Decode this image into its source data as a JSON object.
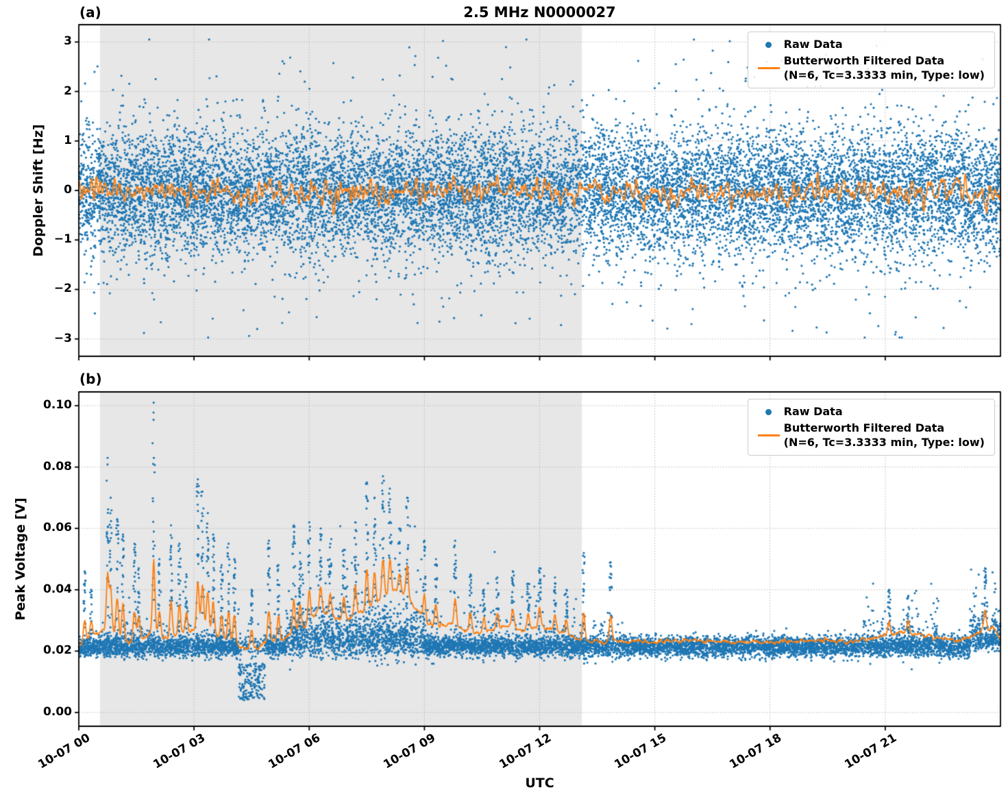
{
  "figure": {
    "title": "2.5 MHz N0000027",
    "panel_a_tag": "(a)",
    "panel_b_tag": "(b)",
    "xlabel": "UTC"
  },
  "legend": {
    "raw_label": "Raw Data",
    "filtered_label": "Butterworth Filtered Data",
    "filtered_sublabel": "(N=6, Tc=3.3333 min, Type: low)"
  },
  "colors": {
    "raw_scatter": "#1f77b4",
    "filtered_line": "#ff7f0e",
    "shaded_region": "#e7e7e7",
    "grid": "#b8b8b8",
    "axis": "#000000",
    "background": "#ffffff",
    "legend_border": "#cccccc"
  },
  "chart_data": [
    {
      "panel": "a",
      "type": "scatter",
      "title": "2.5 MHz N0000027",
      "ylabel": "Doppler Shift [Hz]",
      "ylim": [
        -3.35,
        3.35
      ],
      "yticks": [
        3,
        2,
        1,
        0,
        -1,
        -2,
        -3
      ],
      "ytick_labels": [
        "3",
        "2",
        "1",
        "0",
        "−1",
        "−2",
        "−3"
      ],
      "xlim_hours": [
        0,
        24
      ],
      "xtick_hours": [
        0,
        3,
        6,
        9,
        12,
        15,
        18,
        21
      ],
      "xtick_labels": [
        "10-07 00",
        "10-07 03",
        "10-07 06",
        "10-07 09",
        "10-07 12",
        "10-07 15",
        "10-07 18",
        "10-07 21"
      ],
      "shaded_region_hours": [
        0.55,
        13.1
      ],
      "grid": "dotted",
      "legend_position": "upper right",
      "series": [
        {
          "name": "Raw Data",
          "kind": "scatter",
          "color": "#1f77b4",
          "synthesis": {
            "count": 14000,
            "mean": -0.05,
            "core_std": 0.62,
            "wide_std": 1.0,
            "wide_fraction": 0.1,
            "outlier_fraction": 0.0045,
            "outlier_min": 2.0,
            "outlier_max": 3.05,
            "clip": [
              -2.97,
              3.05
            ]
          }
        },
        {
          "name": "Butterworth Filtered Data (N=6, Tc=3.3333 min, Type: low)",
          "kind": "line",
          "color": "#ff7f0e",
          "synthesis": {
            "count": 1400,
            "mean": -0.04,
            "std": 0.13,
            "max_abs": 0.45
          }
        }
      ]
    },
    {
      "panel": "b",
      "type": "scatter",
      "ylabel": "Peak Voltage [V]",
      "ylim": [
        -0.0045,
        0.1045
      ],
      "yticks": [
        0.1,
        0.08,
        0.06,
        0.04,
        0.02,
        0.0
      ],
      "ytick_labels": [
        "0.10",
        "0.08",
        "0.06",
        "0.04",
        "0.02",
        "0.00"
      ],
      "xlim_hours": [
        0,
        24
      ],
      "xtick_hours": [
        0,
        3,
        6,
        9,
        12,
        15,
        18,
        21
      ],
      "xtick_labels": [
        "10-07 00",
        "10-07 03",
        "10-07 06",
        "10-07 09",
        "10-07 12",
        "10-07 15",
        "10-07 18",
        "10-07 21"
      ],
      "shaded_region_hours": [
        0.55,
        13.1
      ],
      "grid": "dotted",
      "legend_position": "upper right",
      "series": [
        {
          "name": "Raw Data",
          "kind": "scatter",
          "color": "#1f77b4",
          "synthesis": {
            "count": 9500,
            "mean": 0.0215,
            "std": 0.0017,
            "clip": [
              0.003,
              0.102
            ]
          }
        },
        {
          "name": "Butterworth Filtered Data (N=6, Tc=3.3333 min, Type: low)",
          "kind": "line",
          "color": "#ff7f0e",
          "synthesis": {
            "count": 1500,
            "noise": 0.0007
          }
        }
      ],
      "regions": [
        {
          "t": [
            0.55,
            13.1
          ],
          "tail_prob": 0.12,
          "tail_scale": 0.005,
          "tail_cap": 0.03
        },
        {
          "t": [
            5.4,
            9.0
          ],
          "mean": 0.0235,
          "std": 0.0028,
          "tail_prob": 0.3,
          "tail_scale": 0.006,
          "tail_cap": 0.038
        },
        {
          "t": [
            13.1,
            14.2
          ],
          "tail_prob": 0.15,
          "tail_scale": 0.003,
          "tail_cap": 0.01
        },
        {
          "t": [
            20.3,
            22.4
          ],
          "tail_prob": 0.25,
          "tail_scale": 0.004,
          "tail_cap": 0.017
        },
        {
          "t": [
            23.2,
            24.0
          ],
          "mean": 0.0235,
          "tail_prob": 0.5,
          "tail_scale": 0.005,
          "tail_cap": 0.022
        }
      ],
      "dip": {
        "t": [
          4.15,
          4.85
        ],
        "low": 0.004,
        "high": 0.016,
        "prob": 0.72
      },
      "spikes": [
        [
          0.15,
          0.046
        ],
        [
          0.32,
          0.04
        ],
        [
          0.75,
          0.083
        ],
        [
          0.83,
          0.07
        ],
        [
          1.0,
          0.063
        ],
        [
          1.15,
          0.058
        ],
        [
          1.45,
          0.055
        ],
        [
          1.56,
          0.047
        ],
        [
          1.95,
          0.101
        ],
        [
          2.1,
          0.05
        ],
        [
          2.4,
          0.061
        ],
        [
          2.62,
          0.055
        ],
        [
          2.8,
          0.045
        ],
        [
          3.1,
          0.076
        ],
        [
          3.22,
          0.072
        ],
        [
          3.36,
          0.065
        ],
        [
          3.5,
          0.058
        ],
        [
          3.72,
          0.048
        ],
        [
          3.9,
          0.055
        ],
        [
          4.05,
          0.05
        ],
        [
          4.5,
          0.04
        ],
        [
          4.95,
          0.056
        ],
        [
          5.2,
          0.048
        ],
        [
          5.6,
          0.061
        ],
        [
          5.76,
          0.052
        ],
        [
          6.0,
          0.062
        ],
        [
          6.3,
          0.06
        ],
        [
          6.55,
          0.055
        ],
        [
          6.9,
          0.053
        ],
        [
          7.2,
          0.062
        ],
        [
          7.5,
          0.075
        ],
        [
          7.7,
          0.07
        ],
        [
          7.92,
          0.077
        ],
        [
          8.1,
          0.073
        ],
        [
          8.35,
          0.06
        ],
        [
          8.55,
          0.07
        ],
        [
          9.0,
          0.056
        ],
        [
          9.3,
          0.05
        ],
        [
          9.8,
          0.056
        ],
        [
          10.2,
          0.045
        ],
        [
          10.55,
          0.04
        ],
        [
          10.9,
          0.044
        ],
        [
          11.3,
          0.046
        ],
        [
          11.7,
          0.042
        ],
        [
          12.0,
          0.047
        ],
        [
          12.4,
          0.044
        ],
        [
          12.7,
          0.04
        ],
        [
          13.15,
          0.052
        ],
        [
          13.85,
          0.049
        ],
        [
          21.1,
          0.04
        ],
        [
          21.6,
          0.038
        ],
        [
          23.6,
          0.047
        ]
      ],
      "spike_points": 18,
      "filtered_envelope": [
        [
          0,
          0.0215
        ],
        [
          0.3,
          0.024
        ],
        [
          0.7,
          0.027
        ],
        [
          1.0,
          0.025
        ],
        [
          1.3,
          0.023
        ],
        [
          1.6,
          0.024
        ],
        [
          2.0,
          0.026
        ],
        [
          2.3,
          0.024
        ],
        [
          2.6,
          0.025
        ],
        [
          3.0,
          0.027
        ],
        [
          3.3,
          0.028
        ],
        [
          3.6,
          0.024
        ],
        [
          4.0,
          0.023
        ],
        [
          4.3,
          0.021
        ],
        [
          4.7,
          0.021
        ],
        [
          5.0,
          0.023
        ],
        [
          5.3,
          0.024
        ],
        [
          5.6,
          0.026
        ],
        [
          5.9,
          0.028
        ],
        [
          6.2,
          0.033
        ],
        [
          6.5,
          0.032
        ],
        [
          6.8,
          0.03
        ],
        [
          7.1,
          0.031
        ],
        [
          7.4,
          0.033
        ],
        [
          7.7,
          0.035
        ],
        [
          8.0,
          0.038
        ],
        [
          8.2,
          0.04
        ],
        [
          8.5,
          0.038
        ],
        [
          8.8,
          0.033
        ],
        [
          9.1,
          0.029
        ],
        [
          9.4,
          0.028
        ],
        [
          9.7,
          0.029
        ],
        [
          10.0,
          0.027
        ],
        [
          10.4,
          0.026
        ],
        [
          10.8,
          0.027
        ],
        [
          11.2,
          0.028
        ],
        [
          11.6,
          0.027
        ],
        [
          12.0,
          0.028
        ],
        [
          12.4,
          0.027
        ],
        [
          12.8,
          0.025
        ],
        [
          13.1,
          0.0235
        ],
        [
          13.5,
          0.023
        ],
        [
          14.0,
          0.0235
        ],
        [
          15.0,
          0.023
        ],
        [
          16.0,
          0.0235
        ],
        [
          17.0,
          0.023
        ],
        [
          18.0,
          0.023
        ],
        [
          19.0,
          0.0235
        ],
        [
          20.0,
          0.023
        ],
        [
          20.5,
          0.024
        ],
        [
          21.0,
          0.025
        ],
        [
          21.5,
          0.026
        ],
        [
          22.0,
          0.025
        ],
        [
          22.5,
          0.024
        ],
        [
          23.0,
          0.0235
        ],
        [
          23.5,
          0.026
        ],
        [
          23.8,
          0.028
        ],
        [
          24.0,
          0.0235
        ]
      ],
      "filtered_bump_factor": 0.32,
      "filtered_bump_width_hours": 0.045
    }
  ]
}
